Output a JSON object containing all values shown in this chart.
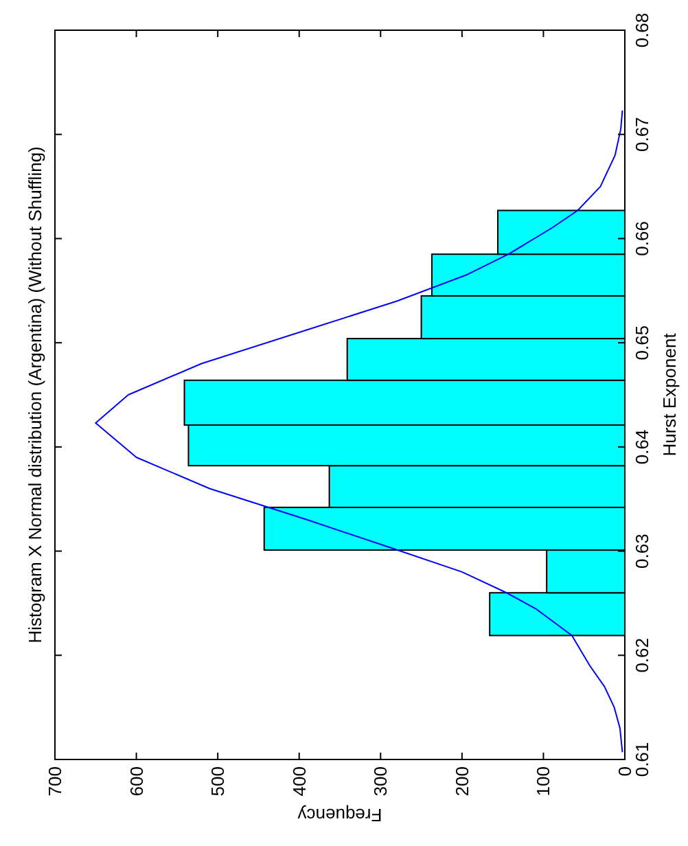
{
  "chart_data": {
    "type": "histogram",
    "orientation": "horizontal",
    "title": "Histogram X Normal distribution (Argentina) (Without Shuffling)",
    "xlabel": "Frequency",
    "ylabel": "Hurst Exponent",
    "bins": [
      0.6219,
      0.626,
      0.6301,
      0.6342,
      0.6382,
      0.6421,
      0.6464,
      0.6504,
      0.6545,
      0.6585,
      0.6627
    ],
    "values": [
      166,
      96,
      443,
      363,
      536,
      541,
      341,
      250,
      237,
      156
    ],
    "color": "#00ffff",
    "series": [
      {
        "type": "line",
        "color": "#0000ff",
        "x": [
          0.6107,
          0.613,
          0.615,
          0.617,
          0.619,
          0.6219,
          0.6245,
          0.6261,
          0.628,
          0.6302,
          0.633,
          0.636,
          0.639,
          0.6423,
          0.645,
          0.648,
          0.651,
          0.654,
          0.6565,
          0.6585,
          0.661,
          0.6627,
          0.665,
          0.668,
          0.6705,
          0.6723
        ],
        "values": [
          3,
          6,
          13,
          25,
          43,
          65,
          110,
          148,
          200,
          283,
          390,
          510,
          600,
          650,
          610,
          520,
          400,
          280,
          195,
          143,
          90,
          58,
          30,
          12,
          5,
          3
        ]
      }
    ],
    "xlim": [
      700,
      0
    ],
    "xticks": [
      0,
      100,
      200,
      300,
      400,
      500,
      600,
      700
    ],
    "ylim": [
      0.61,
      0.68
    ],
    "yticks": [
      0.61,
      0.62,
      0.63,
      0.64,
      0.65,
      0.66,
      0.67,
      0.68
    ]
  }
}
